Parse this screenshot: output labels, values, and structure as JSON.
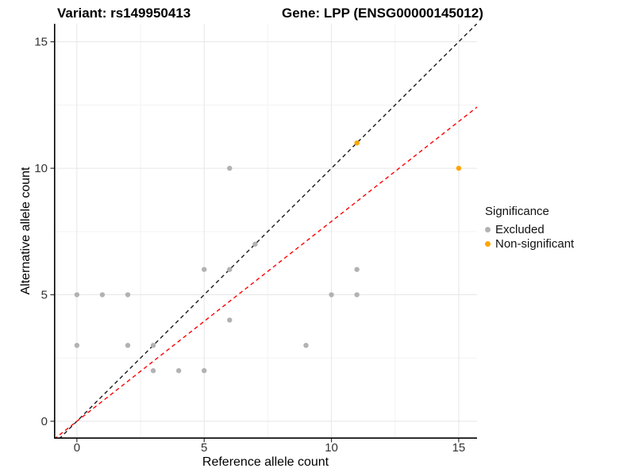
{
  "chart_data": {
    "type": "scatter",
    "titles": [
      "Variant: rs149950413",
      "Gene: LPP (ENSG00000145012)"
    ],
    "xlabel": "Reference allele count",
    "ylabel": "Alternative allele count",
    "xlim": [
      -0.9,
      15.72
    ],
    "ylim": [
      -0.69,
      15.71
    ],
    "x_ticks": [
      0,
      5,
      10,
      15
    ],
    "y_ticks": [
      0,
      5,
      10,
      15
    ],
    "x_minor_ticks": [
      2.5,
      7.5,
      12.5
    ],
    "y_minor_ticks": [
      2.5,
      7.5,
      12.5
    ],
    "grid": "major+minor",
    "series": [
      {
        "name": "Excluded",
        "color": "#b2b2b2",
        "points": [
          [
            0,
            3
          ],
          [
            0,
            5
          ],
          [
            1,
            5
          ],
          [
            2,
            3
          ],
          [
            2,
            5
          ],
          [
            3,
            2
          ],
          [
            3,
            3
          ],
          [
            4,
            2
          ],
          [
            5,
            2
          ],
          [
            5,
            6
          ],
          [
            6,
            4
          ],
          [
            6,
            6
          ],
          [
            6,
            10
          ],
          [
            7,
            7
          ],
          [
            9,
            3
          ],
          [
            10,
            5
          ],
          [
            11,
            5
          ],
          [
            11,
            6
          ]
        ]
      },
      {
        "name": "Non-significant",
        "color": "#ffa500",
        "points": [
          [
            11,
            11
          ],
          [
            15,
            10
          ]
        ]
      }
    ],
    "lines": [
      {
        "name": "identity-line",
        "slope": 1,
        "intercept": 0,
        "color": "#1a1a1a",
        "style": "dashed"
      },
      {
        "name": "threshold-line",
        "slope": 0.79,
        "intercept": 0,
        "color": "#ff0000",
        "style": "dashed"
      }
    ],
    "legend": {
      "title": "Significance",
      "position": "right",
      "items": [
        {
          "label": "Excluded",
          "color": "#b2b2b2"
        },
        {
          "label": "Non-significant",
          "color": "#ffa500"
        }
      ]
    },
    "colors": {
      "grid_major": "#e6e6e6",
      "grid_minor": "#f3f3f3",
      "axis_line": "#000000",
      "tick_label": "#333333"
    }
  }
}
